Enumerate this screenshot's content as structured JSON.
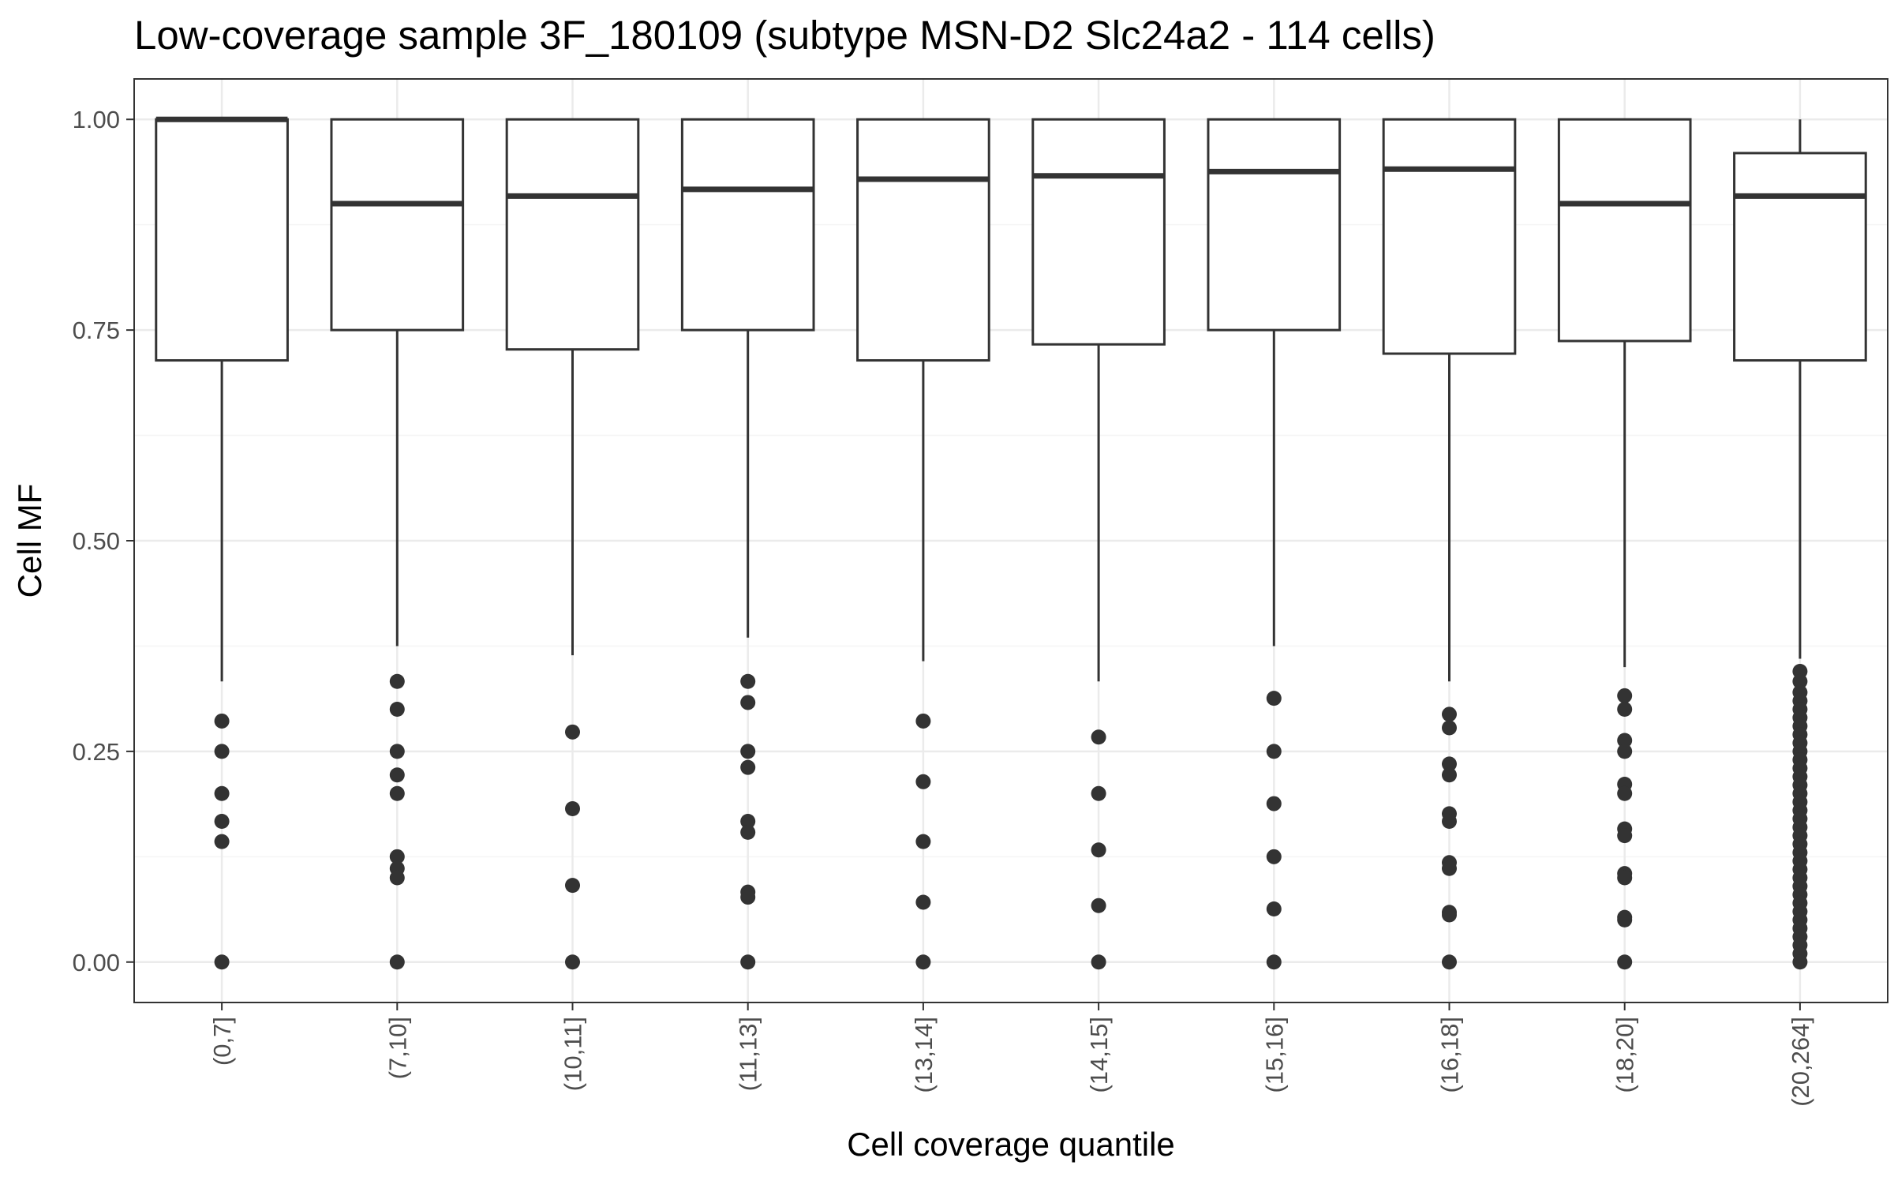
{
  "chart_data": {
    "type": "boxplot",
    "title": "Low-coverage sample 3F_180109 (subtype MSN-D2 Slc24a2 - 114 cells)",
    "xlabel": "Cell coverage quantile",
    "ylabel": "Cell MF",
    "ylim": [
      -0.048,
      1.048
    ],
    "yticks": [
      0.0,
      0.25,
      0.5,
      0.75,
      1.0
    ],
    "ytick_labels": [
      "0.00",
      "0.25",
      "0.50",
      "0.75",
      "1.00"
    ],
    "grid": true,
    "categories": [
      "(0,7]",
      "(7,10]",
      "(10,11]",
      "(11,13]",
      "(13,14]",
      "(14,15]",
      "(15,16]",
      "(16,18]",
      "(18,20]",
      "(20,264]"
    ],
    "boxes": [
      {
        "q1": 0.714,
        "median": 1.0,
        "q3": 1.0,
        "whisker_low": 0.333,
        "whisker_high": 1.0,
        "outliers": [
          0.286,
          0.25,
          0.2,
          0.167,
          0.143,
          0.0
        ]
      },
      {
        "q1": 0.75,
        "median": 0.9,
        "q3": 1.0,
        "whisker_low": 0.375,
        "whisker_high": 1.0,
        "outliers": [
          0.333,
          0.3,
          0.25,
          0.222,
          0.2,
          0.125,
          0.111,
          0.1,
          0.0
        ]
      },
      {
        "q1": 0.727,
        "median": 0.909,
        "q3": 1.0,
        "whisker_low": 0.364,
        "whisker_high": 1.0,
        "outliers": [
          0.273,
          0.182,
          0.091,
          0.0
        ]
      },
      {
        "q1": 0.75,
        "median": 0.917,
        "q3": 1.0,
        "whisker_low": 0.385,
        "whisker_high": 1.0,
        "outliers": [
          0.333,
          0.308,
          0.25,
          0.231,
          0.167,
          0.154,
          0.083,
          0.077,
          0.0
        ]
      },
      {
        "q1": 0.714,
        "median": 0.929,
        "q3": 1.0,
        "whisker_low": 0.357,
        "whisker_high": 1.0,
        "outliers": [
          0.286,
          0.214,
          0.143,
          0.071,
          0.0
        ]
      },
      {
        "q1": 0.733,
        "median": 0.933,
        "q3": 1.0,
        "whisker_low": 0.333,
        "whisker_high": 1.0,
        "outliers": [
          0.267,
          0.2,
          0.133,
          0.067,
          0.0
        ]
      },
      {
        "q1": 0.75,
        "median": 0.938,
        "q3": 1.0,
        "whisker_low": 0.375,
        "whisker_high": 1.0,
        "outliers": [
          0.313,
          0.25,
          0.188,
          0.125,
          0.063,
          0.0
        ]
      },
      {
        "q1": 0.722,
        "median": 0.941,
        "q3": 1.0,
        "whisker_low": 0.333,
        "whisker_high": 1.0,
        "outliers": [
          0.294,
          0.278,
          0.235,
          0.222,
          0.176,
          0.167,
          0.118,
          0.111,
          0.059,
          0.056,
          0.0
        ]
      },
      {
        "q1": 0.737,
        "median": 0.9,
        "q3": 1.0,
        "whisker_low": 0.35,
        "whisker_high": 1.0,
        "outliers": [
          0.316,
          0.3,
          0.263,
          0.25,
          0.211,
          0.2,
          0.158,
          0.15,
          0.105,
          0.1,
          0.053,
          0.05,
          0.0
        ]
      },
      {
        "q1": 0.714,
        "median": 0.909,
        "q3": 0.96,
        "whisker_low": 0.36,
        "whisker_high": 1.0,
        "outliers": [
          0.345,
          0.333,
          0.32,
          0.31,
          0.3,
          0.29,
          0.28,
          0.27,
          0.26,
          0.25,
          0.24,
          0.23,
          0.22,
          0.21,
          0.2,
          0.19,
          0.18,
          0.17,
          0.16,
          0.15,
          0.14,
          0.13,
          0.12,
          0.11,
          0.1,
          0.09,
          0.08,
          0.07,
          0.06,
          0.05,
          0.04,
          0.03,
          0.02,
          0.01,
          0.0
        ]
      }
    ],
    "colors": {
      "box_stroke": "#333333",
      "point": "#333333",
      "panel_border": "#333333",
      "grid_major": "#ebebeb",
      "grid_minor": "#f5f5f5",
      "tick_text": "#4d4d4d"
    }
  }
}
